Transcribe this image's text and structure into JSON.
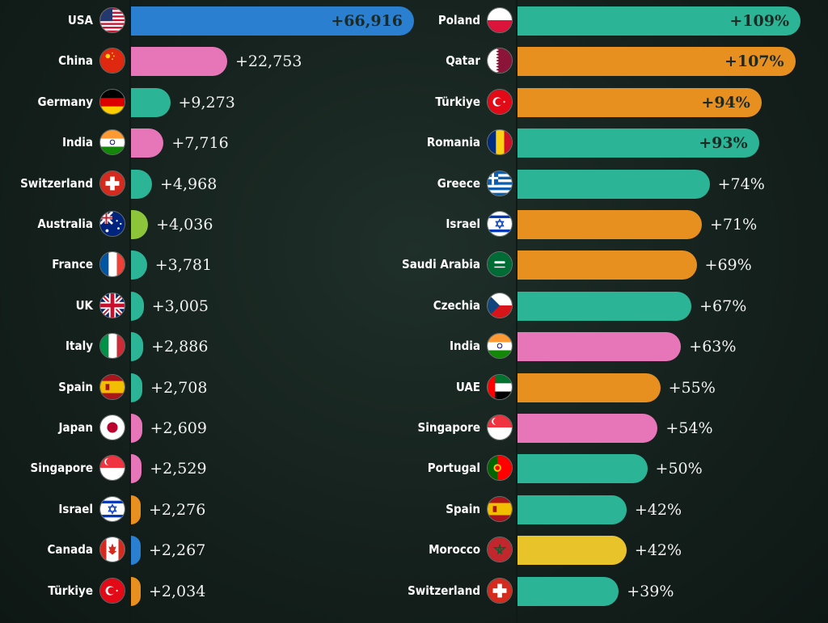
{
  "colors": {
    "blue": "#2a7fd0",
    "pink": "#e676b8",
    "teal": "#2bb596",
    "lime": "#8cc43a",
    "orange": "#e8901f",
    "yellow": "#e8c32a"
  },
  "chart_data": [
    {
      "type": "bar",
      "orientation": "horizontal",
      "categories": [
        "USA",
        "China",
        "Germany",
        "India",
        "Switzerland",
        "Australia",
        "France",
        "UK",
        "Italy",
        "Spain",
        "Japan",
        "Singapore",
        "Israel",
        "Canada",
        "Türkiye"
      ],
      "values": [
        66916,
        22753,
        9273,
        7716,
        4968,
        4036,
        3781,
        3005,
        2886,
        2708,
        2609,
        2529,
        2276,
        2267,
        2034
      ],
      "labels": [
        "+66,916",
        "+22,753",
        "+9,273",
        "+7,716",
        "+4,968",
        "+4,036",
        "+3,781",
        "+3,005",
        "+2,886",
        "+2,708",
        "+2,609",
        "+2,529",
        "+2,276",
        "+2,267",
        "+2,034"
      ],
      "bar_colors": [
        "blue",
        "pink",
        "teal",
        "pink",
        "teal",
        "lime",
        "teal",
        "teal",
        "teal",
        "teal",
        "pink",
        "pink",
        "orange",
        "blue",
        "orange"
      ],
      "flags": [
        "usa-flag-icon",
        "china-flag-icon",
        "germany-flag-icon",
        "india-flag-icon",
        "switzerland-flag-icon",
        "australia-flag-icon",
        "france-flag-icon",
        "uk-flag-icon",
        "italy-flag-icon",
        "spain-flag-icon",
        "japan-flag-icon",
        "singapore-flag-icon",
        "israel-flag-icon",
        "canada-flag-icon",
        "turkiye-flag-icon"
      ],
      "xlim": [
        0,
        66916
      ]
    },
    {
      "type": "bar",
      "orientation": "horizontal",
      "categories": [
        "Poland",
        "Qatar",
        "Türkiye",
        "Romania",
        "Greece",
        "Israel",
        "Saudi Arabia",
        "Czechia",
        "India",
        "UAE",
        "Singapore",
        "Portugal",
        "Spain",
        "Morocco",
        "Switzerland"
      ],
      "values": [
        109,
        107,
        94,
        93,
        74,
        71,
        69,
        67,
        63,
        55,
        54,
        50,
        42,
        42,
        39
      ],
      "labels": [
        "+109%",
        "+107%",
        "+94%",
        "+93%",
        "+74%",
        "+71%",
        "+69%",
        "+67%",
        "+63%",
        "+55%",
        "+54%",
        "+50%",
        "+42%",
        "+42%",
        "+39%"
      ],
      "bar_colors": [
        "teal",
        "orange",
        "orange",
        "teal",
        "teal",
        "orange",
        "orange",
        "teal",
        "pink",
        "orange",
        "pink",
        "teal",
        "teal",
        "yellow",
        "teal"
      ],
      "flags": [
        "poland-flag-icon",
        "qatar-flag-icon",
        "turkiye-flag-icon",
        "romania-flag-icon",
        "greece-flag-icon",
        "israel-flag-icon",
        "saudi-arabia-flag-icon",
        "czechia-flag-icon",
        "india-flag-icon",
        "uae-flag-icon",
        "singapore-flag-icon",
        "portugal-flag-icon",
        "spain-flag-icon",
        "morocco-flag-icon",
        "switzerland-flag-icon"
      ],
      "xlim": [
        0,
        109
      ]
    }
  ]
}
